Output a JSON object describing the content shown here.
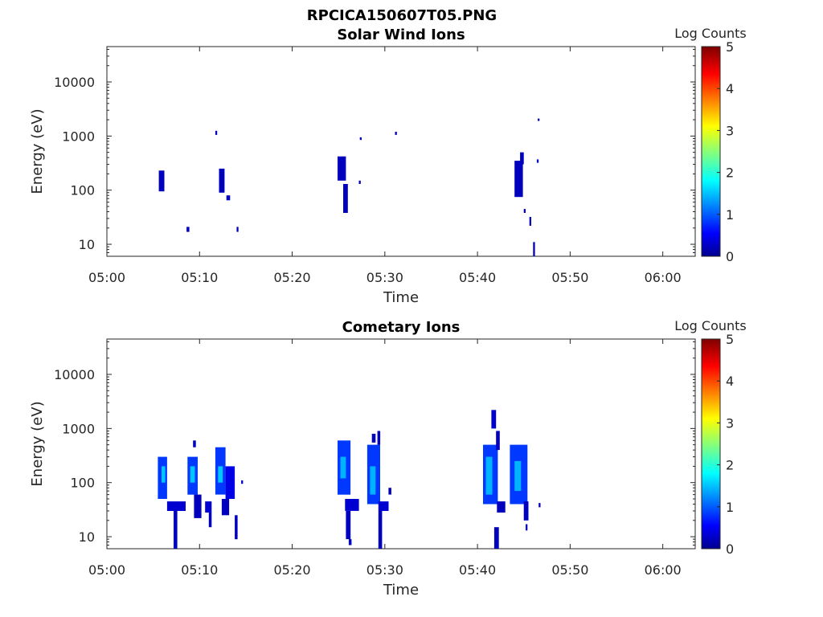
{
  "figure_title": "RPCICA150607T05.PNG",
  "chart_data": [
    {
      "type": "heatmap",
      "title": "Solar Wind Ions",
      "xlabel": "Time",
      "ylabel": "Energy (eV)",
      "x_ticks": [
        "05:00",
        "05:10",
        "05:20",
        "05:30",
        "05:40",
        "05:50",
        "06:00"
      ],
      "y_scale": "log",
      "y_ticks": [
        "10",
        "100",
        "1000",
        "10000"
      ],
      "ylim": [
        6,
        45000
      ],
      "xlim_minutes": [
        0,
        63.5
      ],
      "colorbar": {
        "label": "Log Counts",
        "ticks": [
          "0",
          "1",
          "2",
          "3",
          "4",
          "5"
        ],
        "range": [
          0,
          5
        ],
        "colormap": "jet"
      },
      "cells": [
        {
          "t": [
            5.6,
            6.2
          ],
          "e": [
            95,
            230
          ],
          "v": 0.3
        },
        {
          "t": [
            8.6,
            8.9
          ],
          "e": [
            17,
            21
          ],
          "v": 0.3
        },
        {
          "t": [
            11.7,
            11.9
          ],
          "e": [
            1050,
            1250
          ],
          "v": 0.3
        },
        {
          "t": [
            12.1,
            12.7
          ],
          "e": [
            90,
            250
          ],
          "v": 0.3
        },
        {
          "t": [
            12.9,
            13.3
          ],
          "e": [
            65,
            80
          ],
          "v": 0.3
        },
        {
          "t": [
            14.0,
            14.2
          ],
          "e": [
            17,
            21
          ],
          "v": 0.3
        },
        {
          "t": [
            24.9,
            25.8
          ],
          "e": [
            150,
            420
          ],
          "v": 0.3
        },
        {
          "t": [
            25.5,
            26.0
          ],
          "e": [
            38,
            130
          ],
          "v": 0.3
        },
        {
          "t": [
            27.2,
            27.4
          ],
          "e": [
            130,
            150
          ],
          "v": 0.3
        },
        {
          "t": [
            27.3,
            27.5
          ],
          "e": [
            850,
            950
          ],
          "v": 0.3
        },
        {
          "t": [
            31.1,
            31.3
          ],
          "e": [
            1050,
            1200
          ],
          "v": 0.3
        },
        {
          "t": [
            44.0,
            44.9
          ],
          "e": [
            75,
            350
          ],
          "v": 0.3
        },
        {
          "t": [
            44.6,
            45.0
          ],
          "e": [
            300,
            500
          ],
          "v": 0.3
        },
        {
          "t": [
            45.0,
            45.2
          ],
          "e": [
            38,
            45
          ],
          "v": 0.3
        },
        {
          "t": [
            45.6,
            45.8
          ],
          "e": [
            22,
            32
          ],
          "v": 0.3
        },
        {
          "t": [
            46.0,
            46.2
          ],
          "e": [
            6,
            11
          ],
          "v": 0.3
        },
        {
          "t": [
            46.4,
            46.6
          ],
          "e": [
            320,
            370
          ],
          "v": 0.3
        },
        {
          "t": [
            46.5,
            46.7
          ],
          "e": [
            1900,
            2100
          ],
          "v": 0.3
        }
      ]
    },
    {
      "type": "heatmap",
      "title": "Cometary Ions",
      "xlabel": "Time",
      "ylabel": "Energy (eV)",
      "x_ticks": [
        "05:00",
        "05:10",
        "05:20",
        "05:30",
        "05:40",
        "05:50",
        "06:00"
      ],
      "y_scale": "log",
      "y_ticks": [
        "10",
        "100",
        "1000",
        "10000"
      ],
      "ylim": [
        6,
        45000
      ],
      "xlim_minutes": [
        0,
        63.5
      ],
      "colorbar": {
        "label": "Log Counts",
        "ticks": [
          "0",
          "1",
          "2",
          "3",
          "4",
          "5"
        ],
        "range": [
          0,
          5
        ],
        "colormap": "jet"
      },
      "cells": [
        {
          "t": [
            5.5,
            6.5
          ],
          "e": [
            50,
            300
          ],
          "v": 0.9
        },
        {
          "t": [
            5.9,
            6.3
          ],
          "e": [
            100,
            200
          ],
          "v": 1.6
        },
        {
          "t": [
            6.5,
            8.5
          ],
          "e": [
            30,
            45
          ],
          "v": 0.4
        },
        {
          "t": [
            7.2,
            7.6
          ],
          "e": [
            6,
            30
          ],
          "v": 0.3
        },
        {
          "t": [
            8.7,
            9.8
          ],
          "e": [
            60,
            300
          ],
          "v": 0.9
        },
        {
          "t": [
            9.0,
            9.5
          ],
          "e": [
            100,
            200
          ],
          "v": 1.6
        },
        {
          "t": [
            9.3,
            9.6
          ],
          "e": [
            450,
            600
          ],
          "v": 0.3
        },
        {
          "t": [
            9.4,
            10.2
          ],
          "e": [
            22,
            60
          ],
          "v": 0.3
        },
        {
          "t": [
            10.6,
            11.3
          ],
          "e": [
            28,
            45
          ],
          "v": 0.4
        },
        {
          "t": [
            11.0,
            11.3
          ],
          "e": [
            15,
            28
          ],
          "v": 0.3
        },
        {
          "t": [
            11.7,
            12.8
          ],
          "e": [
            60,
            450
          ],
          "v": 0.9
        },
        {
          "t": [
            12.0,
            12.5
          ],
          "e": [
            100,
            200
          ],
          "v": 1.6
        },
        {
          "t": [
            12.8,
            13.8
          ],
          "e": [
            50,
            200
          ],
          "v": 0.5
        },
        {
          "t": [
            12.4,
            13.2
          ],
          "e": [
            25,
            50
          ],
          "v": 0.3
        },
        {
          "t": [
            13.8,
            14.1
          ],
          "e": [
            9,
            25
          ],
          "v": 0.3
        },
        {
          "t": [
            14.5,
            14.7
          ],
          "e": [
            95,
            110
          ],
          "v": 0.3
        },
        {
          "t": [
            24.9,
            26.3
          ],
          "e": [
            60,
            600
          ],
          "v": 0.9
        },
        {
          "t": [
            25.2,
            25.8
          ],
          "e": [
            120,
            300
          ],
          "v": 1.5
        },
        {
          "t": [
            25.7,
            27.2
          ],
          "e": [
            30,
            50
          ],
          "v": 0.4
        },
        {
          "t": [
            25.8,
            26.3
          ],
          "e": [
            9,
            30
          ],
          "v": 0.3
        },
        {
          "t": [
            26.1,
            26.4
          ],
          "e": [
            7,
            9
          ],
          "v": 0.3
        },
        {
          "t": [
            28.1,
            29.5
          ],
          "e": [
            40,
            500
          ],
          "v": 0.9
        },
        {
          "t": [
            28.4,
            29.0
          ],
          "e": [
            60,
            200
          ],
          "v": 1.5
        },
        {
          "t": [
            28.6,
            29.0
          ],
          "e": [
            550,
            800
          ],
          "v": 0.3
        },
        {
          "t": [
            29.2,
            29.5
          ],
          "e": [
            500,
            900
          ],
          "v": 0.3
        },
        {
          "t": [
            29.3,
            30.4
          ],
          "e": [
            30,
            45
          ],
          "v": 0.4
        },
        {
          "t": [
            29.3,
            29.7
          ],
          "e": [
            6,
            30
          ],
          "v": 0.3
        },
        {
          "t": [
            30.4,
            30.7
          ],
          "e": [
            60,
            80
          ],
          "v": 0.3
        },
        {
          "t": [
            40.6,
            42.2
          ],
          "e": [
            40,
            500
          ],
          "v": 0.9
        },
        {
          "t": [
            40.9,
            41.6
          ],
          "e": [
            60,
            300
          ],
          "v": 1.5
        },
        {
          "t": [
            41.5,
            42.0
          ],
          "e": [
            1000,
            2200
          ],
          "v": 0.4
        },
        {
          "t": [
            42.0,
            42.4
          ],
          "e": [
            400,
            900
          ],
          "v": 0.3
        },
        {
          "t": [
            42.1,
            43.0
          ],
          "e": [
            28,
            45
          ],
          "v": 0.3
        },
        {
          "t": [
            41.8,
            42.3
          ],
          "e": [
            6,
            15
          ],
          "v": 0.3
        },
        {
          "t": [
            43.5,
            45.4
          ],
          "e": [
            40,
            500
          ],
          "v": 0.9
        },
        {
          "t": [
            44.0,
            44.7
          ],
          "e": [
            70,
            250
          ],
          "v": 1.5
        },
        {
          "t": [
            45.0,
            45.5
          ],
          "e": [
            20,
            45
          ],
          "v": 0.3
        },
        {
          "t": [
            45.2,
            45.4
          ],
          "e": [
            13,
            17
          ],
          "v": 0.3
        },
        {
          "t": [
            46.6,
            46.8
          ],
          "e": [
            35,
            42
          ],
          "v": 0.3
        }
      ]
    }
  ]
}
